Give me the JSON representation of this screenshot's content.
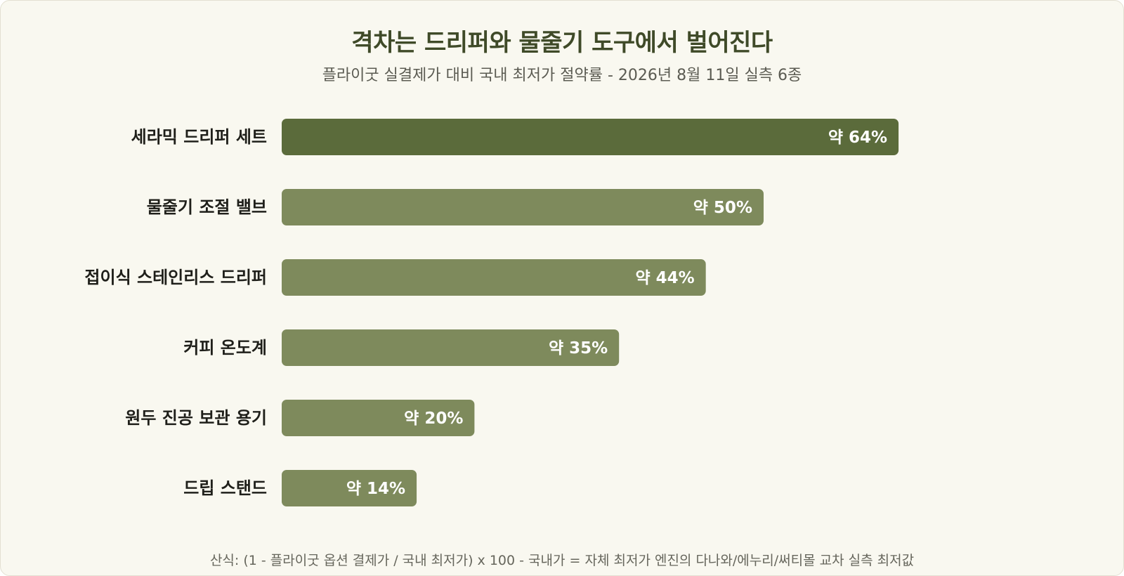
{
  "chart": {
    "title": "격차는 드리퍼와 물줄기 도구에서 벌어진다",
    "subtitle": "플라이굿 실결제가 대비 국내 최저가 절약률 - 2026년 8월 11일 실측 6종",
    "footnote": "산식: (1 - 플라이굿 옵션 결제가 / 국내 최저가) x 100 - 국내가 = 자체 최저가 엔진의 다나와/에누리/써티몰 교차 실측 최저값"
  },
  "chart_data": {
    "type": "bar",
    "orientation": "horizontal",
    "title": "격차는 드리퍼와 물줄기 도구에서 벌어진다",
    "subtitle": "플라이굿 실결제가 대비 국내 최저가 절약률 - 2026년 8월 11일 실측 6종",
    "categories": [
      "세라믹 드리퍼 세트",
      "물줄기 조절 밸브",
      "접이식 스테인리스 드리퍼",
      "커피 온도계",
      "원두 진공 보관 용기",
      "드립 스탠드"
    ],
    "values": [
      64,
      50,
      44,
      35,
      20,
      14
    ],
    "value_labels": [
      "약 64%",
      "약 50%",
      "약 44%",
      "약 35%",
      "약 20%",
      "약 14%"
    ],
    "xlim": [
      0,
      100
    ],
    "grid": false,
    "legend": "none",
    "colors": {
      "highlight": "#5b6b3b",
      "default": "#7e8a5c"
    },
    "highlight_index": 0
  }
}
